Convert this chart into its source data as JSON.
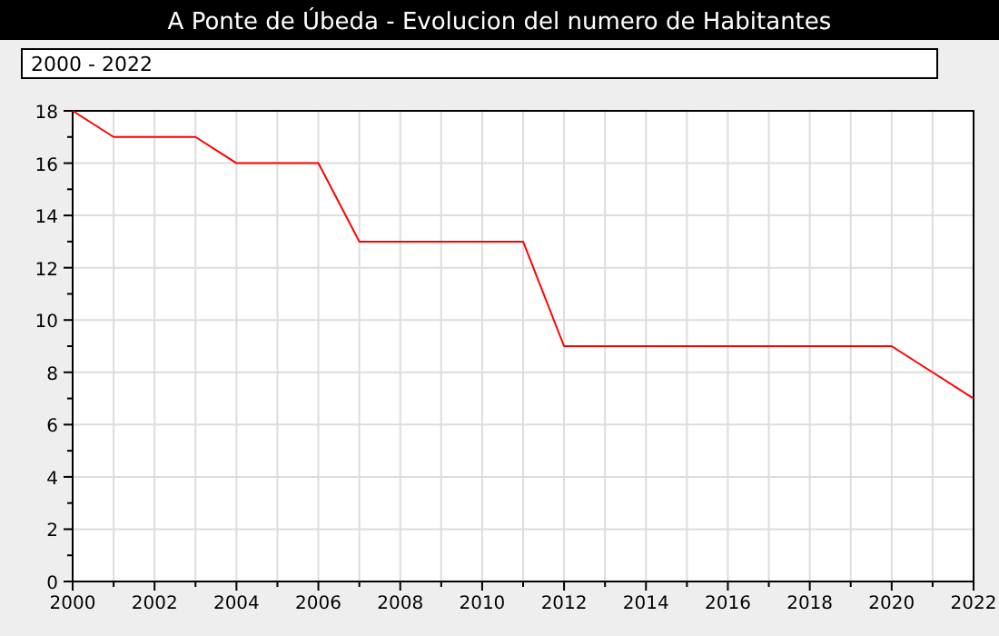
{
  "chart_data": {
    "type": "line",
    "title": "A Ponte de Úbeda - Evolucion del numero de Habitantes",
    "subtitle": "2000 - 2022",
    "x": [
      2000,
      2001,
      2002,
      2003,
      2004,
      2005,
      2006,
      2007,
      2008,
      2009,
      2010,
      2011,
      2012,
      2013,
      2014,
      2015,
      2016,
      2017,
      2018,
      2019,
      2020,
      2021,
      2022
    ],
    "series": [
      {
        "color": "#ff0000",
        "values": [
          18,
          17,
          17,
          17,
          16,
          16,
          16,
          13,
          13,
          13,
          13,
          13,
          9,
          9,
          9,
          9,
          9,
          9,
          9,
          9,
          9,
          8,
          7
        ]
      }
    ],
    "xlim": [
      2000,
      2022
    ],
    "xticks": [
      2000,
      {
        "value": 2001,
        "label": null
      },
      2002,
      {
        "value": 2003,
        "label": null
      },
      2004,
      {
        "value": 2005,
        "label": null
      },
      2006,
      {
        "value": 2007,
        "label": null
      },
      2008,
      {
        "value": 2009,
        "label": null
      },
      2010,
      {
        "value": 2011,
        "label": null
      },
      2012,
      {
        "value": 2013,
        "label": null
      },
      2014,
      {
        "value": 2015,
        "label": null
      },
      2016,
      {
        "value": 2017,
        "label": null
      },
      2018,
      {
        "value": 2019,
        "label": null
      },
      2020,
      {
        "value": 2021,
        "label": null
      },
      2022
    ],
    "ylim": [
      0,
      18
    ],
    "yticks": [
      0,
      {
        "value": 1,
        "label": null
      },
      2,
      {
        "value": 3,
        "label": null
      },
      4,
      {
        "value": 5,
        "label": null
      },
      6,
      {
        "value": 7,
        "label": null
      },
      8,
      {
        "value": 9,
        "label": null
      },
      10,
      {
        "value": 11,
        "label": null
      },
      12,
      {
        "value": 13,
        "label": null
      },
      14,
      {
        "value": 15,
        "label": null
      },
      16,
      {
        "value": 17,
        "label": null
      },
      18
    ],
    "grid": true,
    "marker": "none",
    "line_style": "solid"
  }
}
